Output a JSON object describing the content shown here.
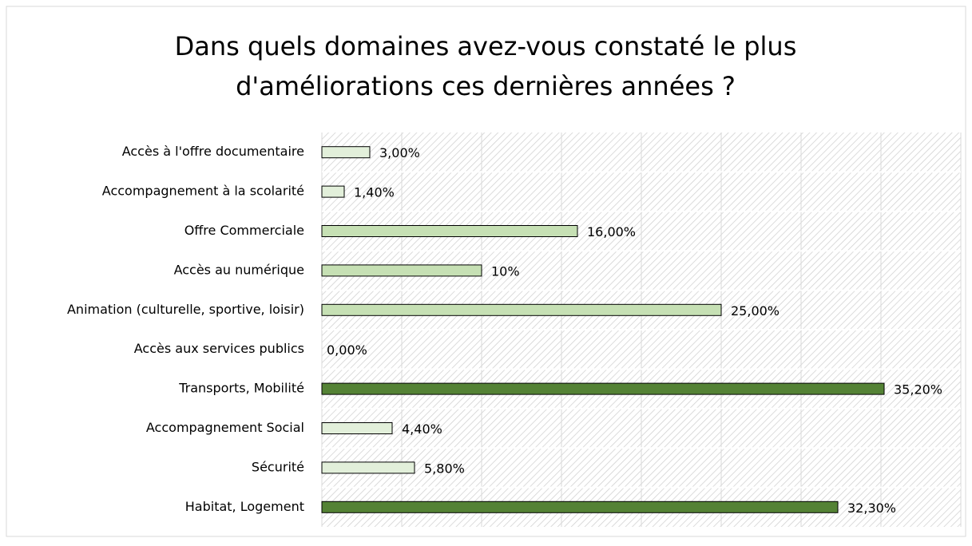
{
  "chart_data": {
    "type": "bar",
    "orientation": "horizontal",
    "title": [
      "Dans quels domaines avez-vous constaté le plus",
      "d'améliorations ces dernières années ?"
    ],
    "categories": [
      "Accès à l'offre documentaire",
      "Accompagnement à la scolarité",
      "Offre Commerciale",
      "Accès au numérique",
      "Animation (culturelle, sportive, loisir)",
      "Accès aux services publics",
      "Transports, Mobilité",
      "Accompagnement Social",
      "Sécurité",
      "Habitat, Logement"
    ],
    "values": [
      3,
      1.4,
      16,
      10,
      25,
      0,
      35.2,
      4.4,
      5.8,
      32.3
    ],
    "value_labels": [
      "3,00%",
      "1,40%",
      "16,00%",
      "10%",
      "25,00%",
      "0,00%",
      "35,20%",
      "4,40%",
      "5,80%",
      "32,30%"
    ],
    "colors": [
      "#e2efda",
      "#e2efda",
      "#c6e0b4",
      "#c6e0b4",
      "#c6e0b4",
      "#e2efda",
      "#548235",
      "#e2efda",
      "#e2efda",
      "#548235"
    ],
    "xlim": [
      0,
      40
    ],
    "xticks": [
      0,
      5,
      10,
      15,
      20,
      25,
      30,
      35,
      40
    ],
    "grid": true
  }
}
